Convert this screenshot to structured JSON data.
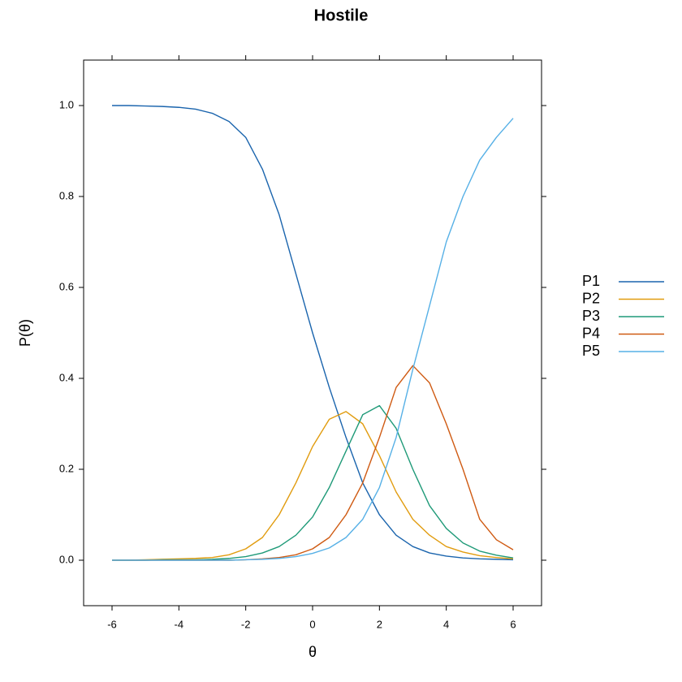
{
  "chart_data": {
    "type": "line",
    "title": "Hostile",
    "x_label": "θ",
    "y_label": "P(θ)",
    "x": [
      -6,
      -5.5,
      -5,
      -4.5,
      -4,
      -3.5,
      -3,
      -2.5,
      -2,
      -1.5,
      -1,
      -0.5,
      0,
      0.5,
      1,
      1.5,
      2,
      2.5,
      3,
      3.5,
      4,
      4.5,
      5,
      5.5,
      6
    ],
    "series": [
      {
        "name": "P1",
        "color": "#1a64ad",
        "values": [
          1.0,
          1.0,
          0.999,
          0.998,
          0.996,
          0.992,
          0.983,
          0.965,
          0.93,
          0.86,
          0.76,
          0.63,
          0.5,
          0.38,
          0.27,
          0.17,
          0.1,
          0.055,
          0.03,
          0.016,
          0.009,
          0.005,
          0.003,
          0.002,
          0.001
        ]
      },
      {
        "name": "P2",
        "color": "#e19c0f",
        "values": [
          0.0,
          0.0,
          0.001,
          0.002,
          0.003,
          0.004,
          0.006,
          0.012,
          0.025,
          0.05,
          0.1,
          0.17,
          0.25,
          0.31,
          0.327,
          0.3,
          0.23,
          0.15,
          0.09,
          0.055,
          0.03,
          0.018,
          0.01,
          0.006,
          0.003
        ]
      },
      {
        "name": "P3",
        "color": "#1f9a78",
        "values": [
          0.0,
          0.0,
          0.0,
          0.001,
          0.001,
          0.001,
          0.002,
          0.004,
          0.008,
          0.016,
          0.03,
          0.055,
          0.095,
          0.16,
          0.24,
          0.32,
          0.34,
          0.29,
          0.2,
          0.12,
          0.07,
          0.038,
          0.02,
          0.011,
          0.005
        ]
      },
      {
        "name": "P4",
        "color": "#cf5a12",
        "values": [
          0.0,
          0.0,
          0.0,
          0.0,
          0.0,
          0.0,
          0.0,
          0.0,
          0.001,
          0.003,
          0.006,
          0.012,
          0.025,
          0.05,
          0.1,
          0.17,
          0.27,
          0.38,
          0.428,
          0.39,
          0.3,
          0.2,
          0.09,
          0.045,
          0.023
        ]
      },
      {
        "name": "P5",
        "color": "#56b0e6",
        "values": [
          0.0,
          0.0,
          0.0,
          0.0,
          0.0,
          0.0,
          0.0,
          0.0,
          0.001,
          0.002,
          0.004,
          0.008,
          0.015,
          0.027,
          0.05,
          0.09,
          0.16,
          0.27,
          0.42,
          0.56,
          0.7,
          0.8,
          0.88,
          0.93,
          0.972
        ]
      }
    ],
    "xlim": [
      -6.85,
      6.85
    ],
    "ylim": [
      -0.1,
      1.1
    ],
    "xticks": [
      -6,
      -4,
      -2,
      0,
      2,
      4,
      6
    ],
    "yticks": [
      {
        "value": 0,
        "label": "0.0"
      },
      0.2,
      0.4,
      0.6,
      0.8,
      {
        "value": 1,
        "label": "1.0"
      }
    ],
    "legend": "right"
  }
}
